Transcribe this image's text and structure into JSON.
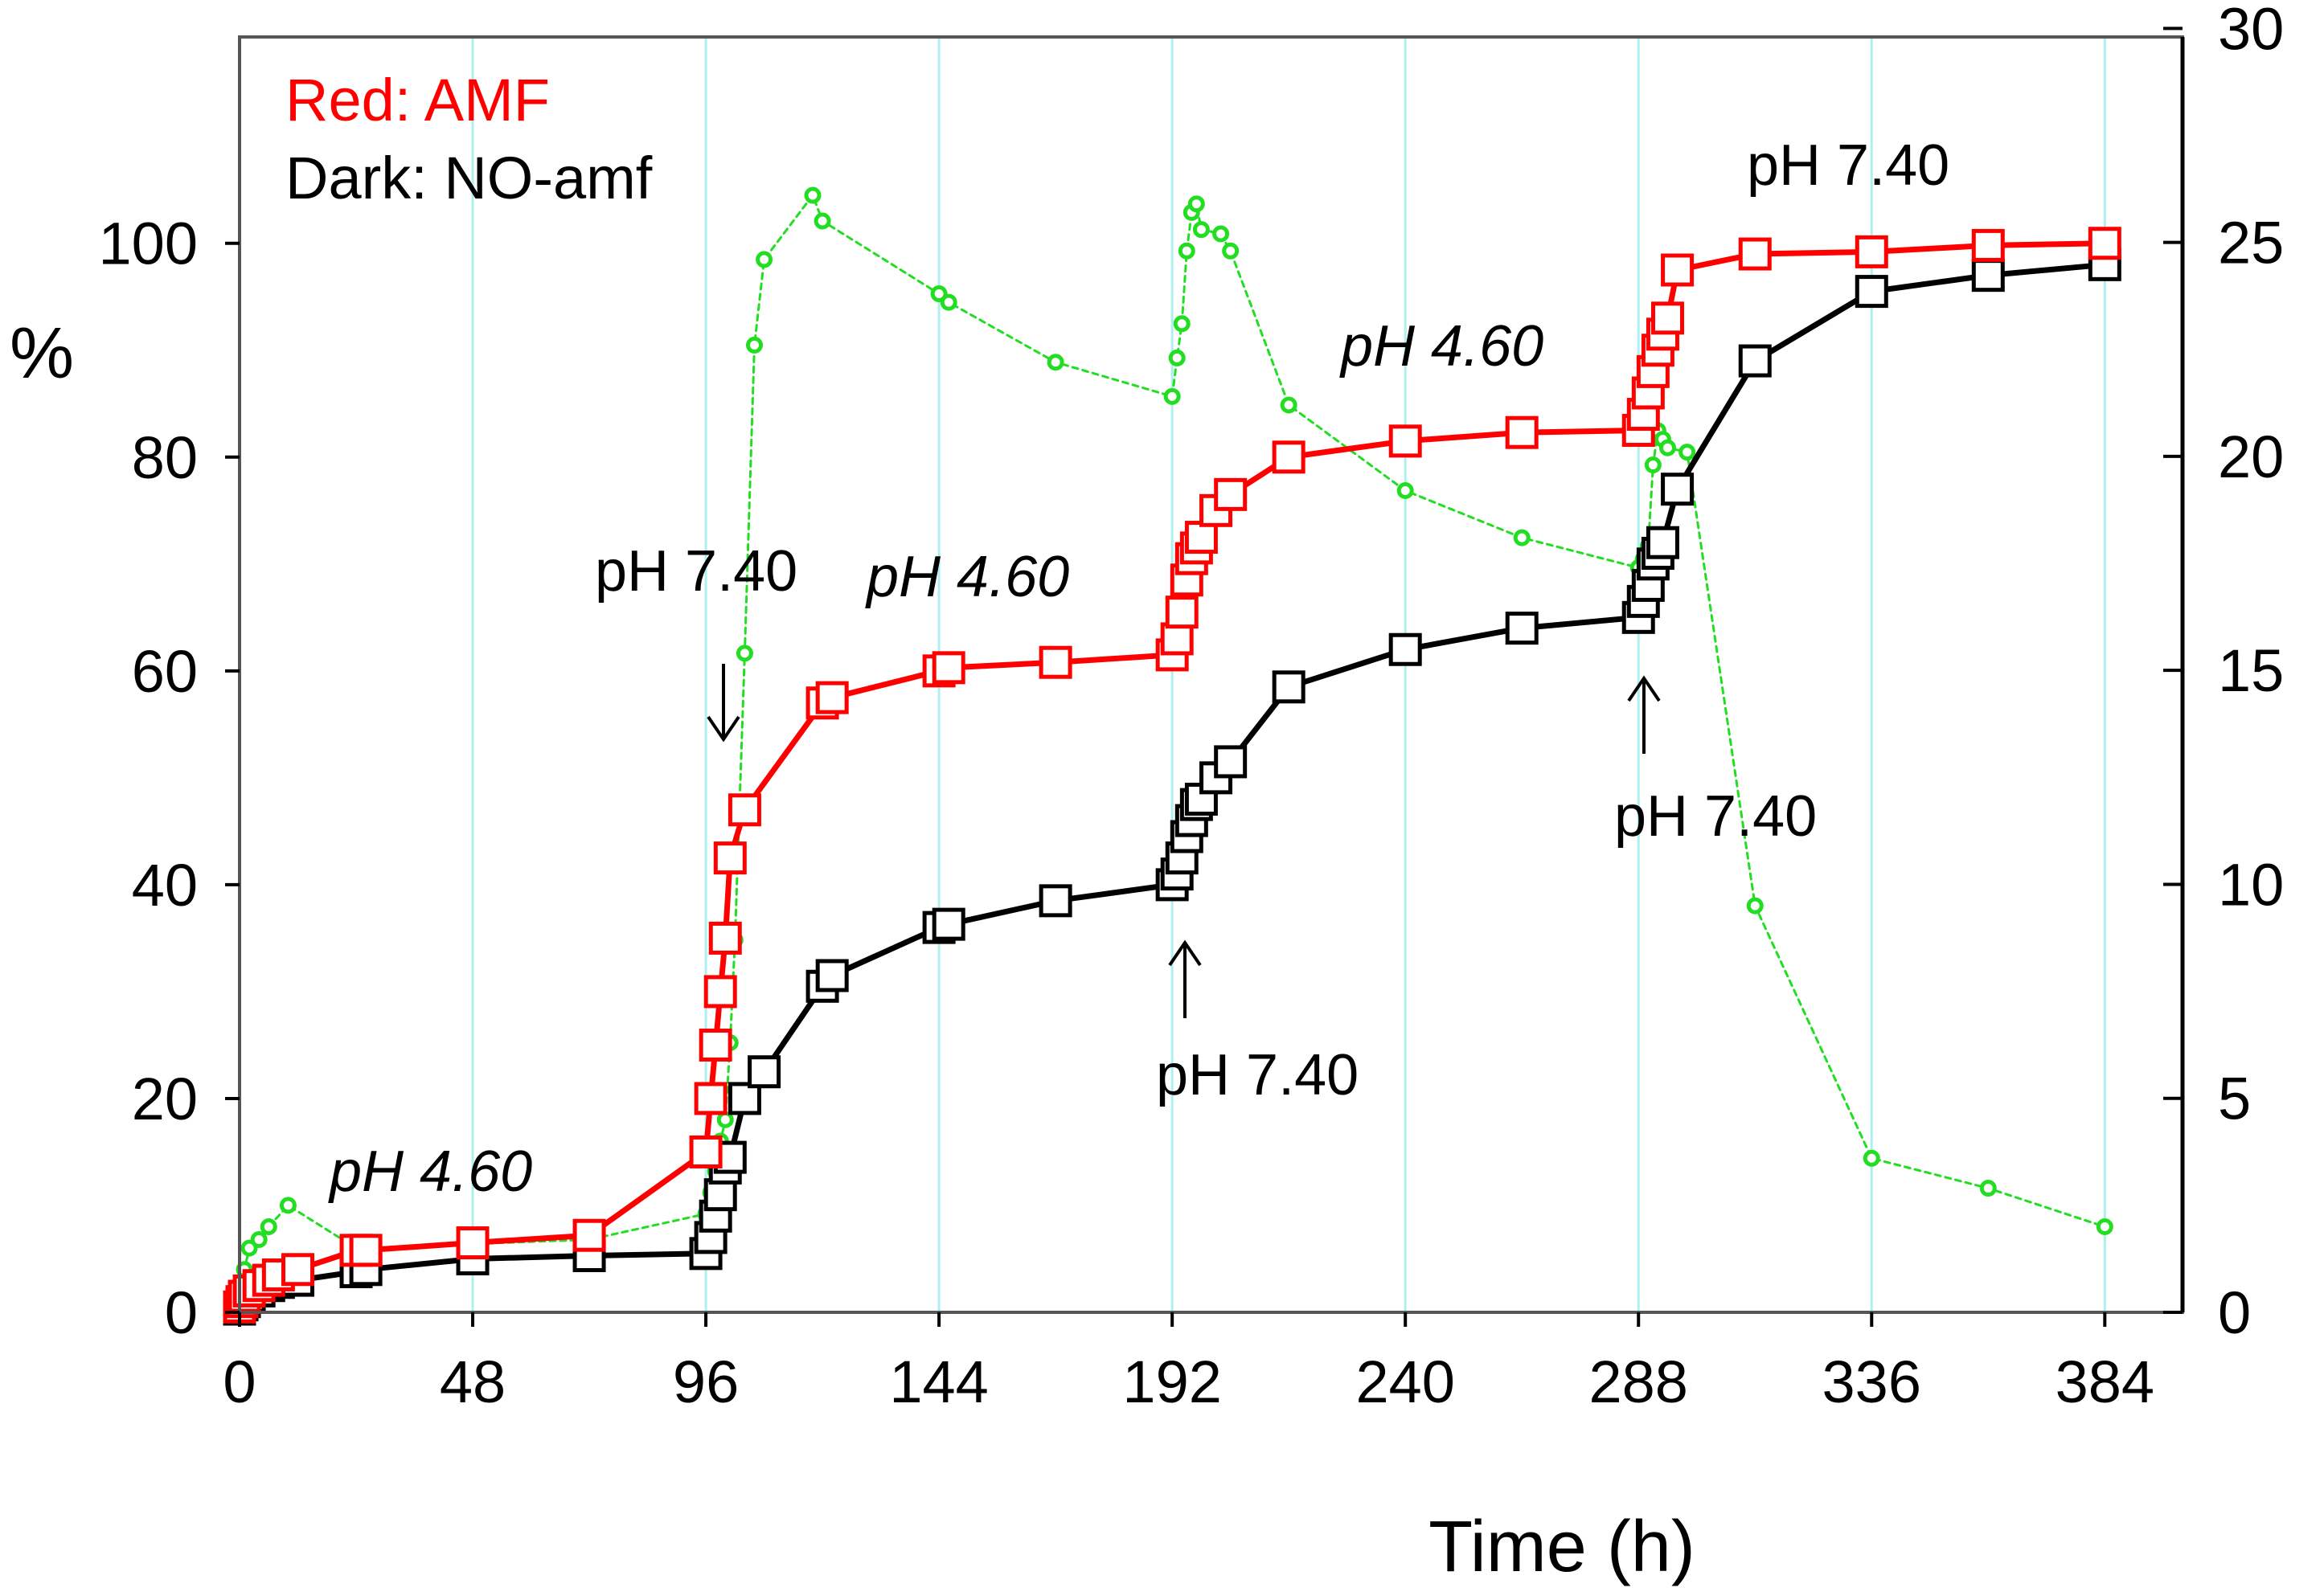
{
  "chart_data": {
    "type": "line",
    "xlabel": "Time (h)",
    "ylabel": "%",
    "x_ticks": [
      0,
      48,
      96,
      144,
      192,
      240,
      288,
      336,
      384
    ],
    "y_ticks": [
      0,
      20,
      40,
      60,
      80,
      100
    ],
    "y2_ticks": [
      0,
      5,
      10,
      15,
      20,
      25,
      30
    ],
    "xlim": [
      0,
      400
    ],
    "ylim": [
      0,
      119.3
    ],
    "y2lim": [
      0,
      29.8
    ],
    "grid": "vertical",
    "legend": [
      {
        "text": "Red: AMF",
        "color": "#ff0000"
      },
      {
        "text": "Dark: NO-amf",
        "color": "#000000"
      }
    ],
    "legend_placement": "top-left",
    "series": [
      {
        "key": "amf",
        "color": "#ff0000",
        "marker": "square",
        "axis": "left",
        "x": [
          0,
          0.5,
          1,
          2,
          4,
          6,
          8,
          12,
          24,
          26,
          48,
          72,
          96,
          97,
          98,
          99,
          100,
          101,
          104,
          120,
          122,
          144,
          146,
          168,
          192,
          193,
          194,
          195,
          196,
          197,
          198,
          201,
          204,
          216,
          240,
          264,
          288,
          289,
          290,
          291,
          292,
          293,
          294,
          296,
          312,
          336,
          360,
          384
        ],
        "y": [
          0.5,
          1.0,
          1.5,
          2.0,
          2.5,
          3.0,
          3.5,
          4.0,
          5.8,
          5.8,
          6.5,
          7.2,
          15.0,
          20.0,
          25.0,
          30.0,
          35.0,
          42.5,
          47.0,
          57.0,
          57.5,
          60.0,
          60.3,
          60.8,
          61.5,
          63.0,
          65.5,
          68.5,
          70.5,
          71.5,
          72.5,
          75.0,
          76.5,
          80.0,
          81.5,
          82.3,
          82.5,
          84.0,
          86.0,
          88.0,
          90.0,
          91.5,
          93.0,
          97.5,
          99.0,
          99.2,
          99.8,
          100.0
        ]
      },
      {
        "key": "no_amf",
        "color": "#000000",
        "marker": "square",
        "axis": "left",
        "x": [
          0,
          0.5,
          1,
          2,
          4,
          6,
          8,
          12,
          24,
          26,
          48,
          72,
          96,
          97,
          98,
          99,
          100,
          101,
          104,
          108,
          120,
          122,
          144,
          146,
          168,
          192,
          193,
          194,
          195,
          196,
          197,
          198,
          201,
          204,
          216,
          240,
          264,
          288,
          289,
          290,
          291,
          292,
          293,
          296,
          312,
          336,
          360,
          384
        ],
        "y": [
          0.3,
          0.7,
          1.0,
          1.5,
          2.0,
          2.5,
          2.8,
          3.0,
          3.8,
          4.0,
          5.0,
          5.3,
          5.5,
          7.0,
          9.0,
          11.0,
          13.5,
          14.5,
          20.0,
          22.5,
          30.5,
          31.5,
          36.0,
          36.3,
          38.5,
          40.0,
          41.0,
          42.5,
          44.5,
          46.0,
          47.5,
          48.0,
          50.0,
          51.5,
          58.5,
          62.0,
          64.0,
          65.0,
          66.5,
          68.0,
          70.0,
          71.0,
          72.0,
          77.0,
          89.0,
          95.5,
          97.0,
          98.0
        ]
      },
      {
        "key": "ph",
        "color": "#22dd22",
        "marker": "circle",
        "axis": "right",
        "dashed": true,
        "x": [
          0,
          1,
          2,
          4,
          6,
          10,
          24,
          26,
          48,
          72,
          96,
          97,
          98,
          99,
          100,
          101,
          102,
          104,
          106,
          108,
          118,
          120,
          144,
          146,
          168,
          192,
          193,
          194,
          195,
          196,
          197,
          198,
          202,
          204,
          216,
          240,
          264,
          288,
          289,
          290,
          291,
          292,
          293,
          294,
          298,
          312,
          336,
          360,
          384
        ],
        "y": [
          0.0,
          1.0,
          1.5,
          1.7,
          2.0,
          2.5,
          1.5,
          1.5,
          1.6,
          1.7,
          2.3,
          2.8,
          3.3,
          4.0,
          4.5,
          6.3,
          8.7,
          15.4,
          22.6,
          24.6,
          26.1,
          25.5,
          23.8,
          23.6,
          22.2,
          21.4,
          22.3,
          23.1,
          24.8,
          25.7,
          25.9,
          25.3,
          25.2,
          24.8,
          21.2,
          19.2,
          18.1,
          17.4,
          17.6,
          17.9,
          19.8,
          20.6,
          20.4,
          20.2,
          20.1,
          9.5,
          3.6,
          2.9,
          2.0
        ]
      }
    ],
    "annotations": [
      {
        "text": "pH 4.60",
        "italic": true
      },
      {
        "text": "pH 7.40",
        "italic": false
      },
      {
        "text": "pH 4.60",
        "italic": true
      },
      {
        "text": "pH 7.40",
        "italic": false
      },
      {
        "text": "pH 4.60",
        "italic": true
      },
      {
        "text": "pH 7.40",
        "italic": false
      },
      {
        "text": "pH 7.40",
        "italic": false
      }
    ]
  }
}
